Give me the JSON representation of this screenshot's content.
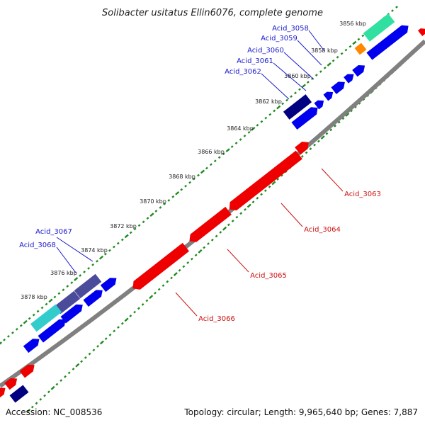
{
  "title": "Solibacter usitatus Ellin6076, complete genome",
  "accession": "Accession: NC_008536",
  "topology": "Topology: circular; Length: 9,965,640 bp; Genes: 7,887",
  "colors": {
    "backbone": "#808080",
    "grid_dots": "#1f8a1f",
    "forward_gene": "#0000ee",
    "reverse_gene": "#ee0000",
    "navy_gene": "#000080",
    "purple_gene": "#4b4b9c",
    "teal_gene": "#30e0a0",
    "orange_gene": "#ff8800",
    "cyan_gene": "#33cccc",
    "label_blue": "#1a1acc",
    "label_red": "#cc1111"
  },
  "ticks": [
    "3856 kbp",
    "3858 kbp",
    "3860 kbp",
    "3862 kbp",
    "3864 kbp",
    "3866 kbp",
    "3868 kbp",
    "3870 kbp",
    "3872 kbp",
    "3874 kbp",
    "3876 kbp",
    "3878 kbp"
  ],
  "gene_labels": [
    {
      "text": "Acid_3058",
      "strand": "forward"
    },
    {
      "text": "Acid_3059",
      "strand": "forward"
    },
    {
      "text": "Acid_3060",
      "strand": "forward"
    },
    {
      "text": "Acid_3061",
      "strand": "forward"
    },
    {
      "text": "Acid_3062",
      "strand": "forward"
    },
    {
      "text": "Acid_3067",
      "strand": "forward"
    },
    {
      "text": "Acid_3068",
      "strand": "forward"
    },
    {
      "text": "Acid_3063",
      "strand": "reverse"
    },
    {
      "text": "Acid_3064",
      "strand": "reverse"
    },
    {
      "text": "Acid_3065",
      "strand": "reverse"
    },
    {
      "text": "Acid_3066",
      "strand": "reverse"
    }
  ]
}
